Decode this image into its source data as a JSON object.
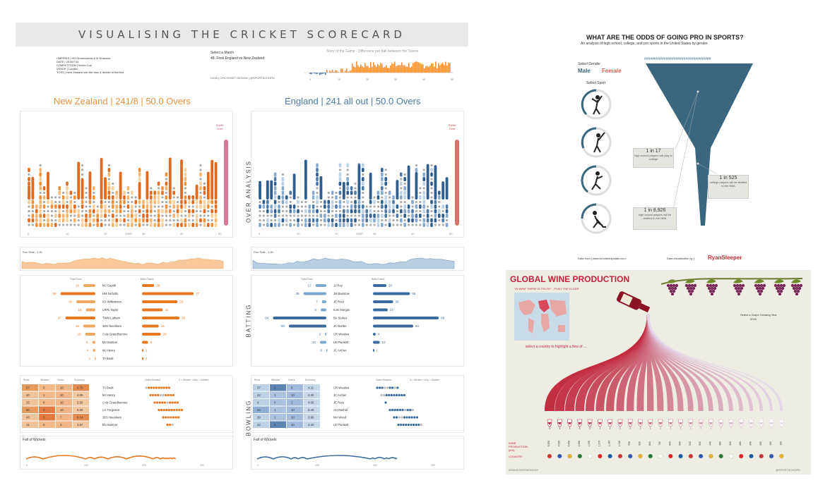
{
  "cricket": {
    "title": "VISUALISING THE CRICKET SCORECARD",
    "meta_lines": [
      "UMPIRES | HD Dharmasena & M Erasmus",
      "DATE | 2019/7/14",
      "COMPETITION | World Cup",
      "VENUE | London",
      "TOSS | New Zealand win the toss & decide to bat first"
    ],
    "select_match_label": "Select a Match",
    "selected_match": "48. Final England vs New Zealand",
    "story_title": "Story of the Game - Difference per ball between the Teams",
    "credits": "DATA | CRICSHEET   DESIGN | @SPORTSCHORD",
    "nz_header": "New Zealand | 241/8 | 50.0 Overs",
    "eng_header": "England | 241 all out | 50.0 Overs",
    "over_analysis_label": "OVER ANALYSIS",
    "batting_label": "BATTING",
    "bowling_label": "BOWLING",
    "super_over": "Super Over",
    "overs_label": "OVER",
    "nz_run_rate": "Run Rate : 4.81",
    "eng_run_rate": "Run Rate : 4.81",
    "total_runs_label": "Total Runs",
    "balls_faced_label": "Balls Faced",
    "fall_of_wickets_label": "Fall of Wickets",
    "over_ticks": [
      "0",
      "10",
      "20",
      "30",
      "40",
      "50"
    ],
    "fow_ticks": [
      "0",
      "100",
      "200",
      "300"
    ],
    "bowling_cols": [
      "Runs",
      "Wickets",
      "Overs",
      "Economy"
    ],
    "overs_bowled_label": "Overs Bowled",
    "bowl_legend": "4 = Wicket / Grey = Maiden",
    "nz_batting": [
      {
        "name": "MJ Guptill",
        "runs": 19,
        "balls": 18
      },
      {
        "name": "HM Nicholls",
        "runs": 55,
        "balls": 77
      },
      {
        "name": "KS Williamson",
        "runs": 30,
        "balls": 53
      },
      {
        "name": "LRPL Taylor",
        "runs": 15,
        "balls": 31
      },
      {
        "name": "TWM Latham",
        "runs": 47,
        "balls": 56
      },
      {
        "name": "JDS Neesham",
        "runs": 19,
        "balls": 25
      },
      {
        "name": "C de Grandhomme",
        "runs": 16,
        "balls": 28
      },
      {
        "name": "MJ Santner",
        "runs": 5,
        "balls": 9
      },
      {
        "name": "MJ Henry",
        "runs": 4,
        "balls": 2
      },
      {
        "name": "TA Boult",
        "runs": 1,
        "balls": 2
      }
    ],
    "eng_batting": [
      {
        "name": "JJ Roy",
        "runs": 17,
        "balls": 20
      },
      {
        "name": "JM Bairstow",
        "runs": 36,
        "balls": 55
      },
      {
        "name": "JE Root",
        "runs": 7,
        "balls": 30
      },
      {
        "name": "EJG Morgan",
        "runs": 9,
        "balls": 22
      },
      {
        "name": "BA Stokes",
        "runs": 84,
        "balls": 98
      },
      {
        "name": "JC Buttler",
        "runs": 59,
        "balls": 60
      },
      {
        "name": "CR Woakes",
        "runs": 2,
        "balls": 4
      },
      {
        "name": "LE Plunkett",
        "runs": 10,
        "balls": 10
      },
      {
        "name": "JC Archer",
        "runs": 0,
        "balls": 1
      }
    ],
    "nz_bowling": [
      {
        "name": "TA Boult",
        "runs": 67,
        "wickets": 0,
        "overs": 10,
        "economy": "6.70"
      },
      {
        "name": "MJ Henry",
        "runs": 40,
        "wickets": 1,
        "overs": 10,
        "economy": "4.00"
      },
      {
        "name": "C de Grandhomme",
        "runs": 25,
        "wickets": 0,
        "overs": 10,
        "economy": "2.50"
      },
      {
        "name": "LH Ferguson",
        "runs": 50,
        "wickets": 3,
        "overs": 10,
        "economy": "5.00"
      },
      {
        "name": "JDS Neesham",
        "runs": 43,
        "wickets": 3,
        "overs": 7,
        "economy": "6.14"
      },
      {
        "name": "MJ Santner",
        "runs": 11,
        "wickets": 0,
        "overs": 3,
        "economy": "3.67"
      }
    ],
    "eng_bowling": [
      {
        "name": "CR Woakes",
        "runs": 37,
        "wickets": 3,
        "overs": 9,
        "economy": "4.11"
      },
      {
        "name": "JC Archer",
        "runs": 42,
        "wickets": 1,
        "overs": 10,
        "economy": "4.20"
      },
      {
        "name": "JE Root",
        "runs": 4,
        "wickets": 0,
        "overs": 1,
        "economy": "4.00"
      },
      {
        "name": "AU Rashid",
        "runs": 54,
        "wickets": 1,
        "overs": 10,
        "economy": "5.40"
      },
      {
        "name": "MA Wood",
        "runs": 39,
        "wickets": 1,
        "overs": 10,
        "economy": "3.90"
      },
      {
        "name": "LE Plunkett",
        "runs": 42,
        "wickets": 3,
        "overs": 10,
        "economy": "4.20"
      }
    ]
  },
  "sports": {
    "title": "WHAT ARE THE ODDS OF GOING PRO IN SPORTS?",
    "subtitle": "An analysis of high school, college, and pro sports in the United States by gender.",
    "select_gender": "Select Gender",
    "male": "Male",
    "female": "Female",
    "select_sport": "Select Sport",
    "funnel_top": "##################################",
    "box1_big": "1 in 17",
    "box1_small": "high school players will play in college",
    "box2_big": "1 in 525",
    "box2_small": "college players will be drafted to the NBA",
    "box3_big": "1 in 8,926",
    "box3_small": "high school players will be drafted to the NBA",
    "data_from": "Data from | www.scholarshipstats.com",
    "viz_by": "Data visualization by |",
    "author": "RyanSleeper",
    "accent": "#e05a50",
    "funnel_color": "#3b6680"
  },
  "wine": {
    "title": "GLOBAL WINE PRODUCTION",
    "quote": "\"IN WINE THERE IS TRUTH\" - PLINY THE ELDER",
    "select_country": "select a country to highlight a flow of ...",
    "select_year": "Select a Grape Growing Year",
    "year": "2018",
    "row_production": "WINE PRODUCTION (kHl)",
    "row_country": "COUNTRY",
    "footer_left": "#MAKEOVERMONDAY",
    "footer_right": "@SPORTSCHORD",
    "production_values": [
      "5,000",
      "4,950",
      "4,450",
      "2,390",
      "1,290",
      "1,270",
      "1,140",
      "1,040",
      "996",
      "920",
      "800",
      "700",
      "650",
      "560",
      "540",
      "500",
      "440",
      "380",
      "320",
      "280",
      "240",
      "200",
      "180",
      "160"
    ],
    "accent": "#c0223a"
  },
  "chart_data": [
    {
      "type": "bar",
      "title": "New Zealand | 241/8 | 50.0 Overs",
      "xlabel": "Total Runs",
      "categories": [
        "MJ Guptill",
        "HM Nicholls",
        "KS Williamson",
        "LRPL Taylor",
        "TWM Latham",
        "JDS Neesham",
        "C de Grandhomme",
        "MJ Santner",
        "MJ Henry",
        "TA Boult"
      ],
      "values": [
        19,
        55,
        30,
        15,
        47,
        19,
        16,
        5,
        4,
        1
      ]
    },
    {
      "type": "bar",
      "title": "England | 241 all out | 50.0 Overs",
      "xlabel": "Total Runs",
      "categories": [
        "JJ Roy",
        "JM Bairstow",
        "JE Root",
        "EJG Morgan",
        "BA Stokes",
        "JC Buttler",
        "CR Woakes",
        "LE Plunkett",
        "JC Archer"
      ],
      "values": [
        17,
        36,
        7,
        9,
        84,
        59,
        2,
        10,
        0
      ]
    }
  ]
}
